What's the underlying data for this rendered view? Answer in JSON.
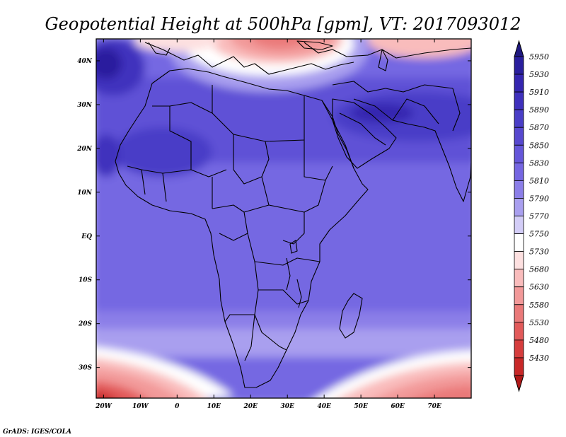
{
  "title": "Geopotential Height at 500hPa [gpm], VT: 2017093012",
  "credit": "GrADS: IGES/COLA",
  "map": {
    "lon_range": [
      -22,
      80
    ],
    "lat_range": [
      -37,
      45
    ],
    "x_ticks": [
      {
        "v": -20,
        "label": "20W"
      },
      {
        "v": -10,
        "label": "10W"
      },
      {
        "v": 0,
        "label": "0"
      },
      {
        "v": 10,
        "label": "10E"
      },
      {
        "v": 20,
        "label": "20E"
      },
      {
        "v": 30,
        "label": "30E"
      },
      {
        "v": 40,
        "label": "40E"
      },
      {
        "v": 50,
        "label": "50E"
      },
      {
        "v": 60,
        "label": "60E"
      },
      {
        "v": 70,
        "label": "70E"
      }
    ],
    "y_ticks": [
      {
        "v": 40,
        "label": "40N"
      },
      {
        "v": 30,
        "label": "30N"
      },
      {
        "v": 20,
        "label": "20N"
      },
      {
        "v": 10,
        "label": "10N"
      },
      {
        "v": 0,
        "label": "EQ"
      },
      {
        "v": -10,
        "label": "10S"
      },
      {
        "v": -20,
        "label": "20S"
      },
      {
        "v": -30,
        "label": "30S"
      }
    ]
  },
  "colorbar": {
    "labels": [
      "5950",
      "5930",
      "5910",
      "5890",
      "5870",
      "5850",
      "5830",
      "5810",
      "5790",
      "5770",
      "5750",
      "5730",
      "5680",
      "5630",
      "5580",
      "5530",
      "5480",
      "5430"
    ],
    "colors": [
      "#2a1f9e",
      "#3526b0",
      "#3f31bd",
      "#4a3ec7",
      "#5748cf",
      "#6556da",
      "#7566e2",
      "#8b7ee8",
      "#a99fef",
      "#d3cdf7",
      "#ffffff",
      "#fde0e0",
      "#f9bcbc",
      "#f29999",
      "#ea7979",
      "#e25a5a",
      "#d63d3d",
      "#c82828"
    ]
  },
  "chart_data": {
    "type": "heatmap",
    "title": "Geopotential Height at 500hPa [gpm], VT: 2017093012",
    "x_range": [
      -22,
      80
    ],
    "y_range": [
      -37,
      45
    ],
    "colorbar_levels": [
      5430,
      5480,
      5530,
      5580,
      5630,
      5680,
      5730,
      5750,
      5770,
      5790,
      5810,
      5830,
      5850,
      5870,
      5890,
      5910,
      5930,
      5950
    ]
  }
}
